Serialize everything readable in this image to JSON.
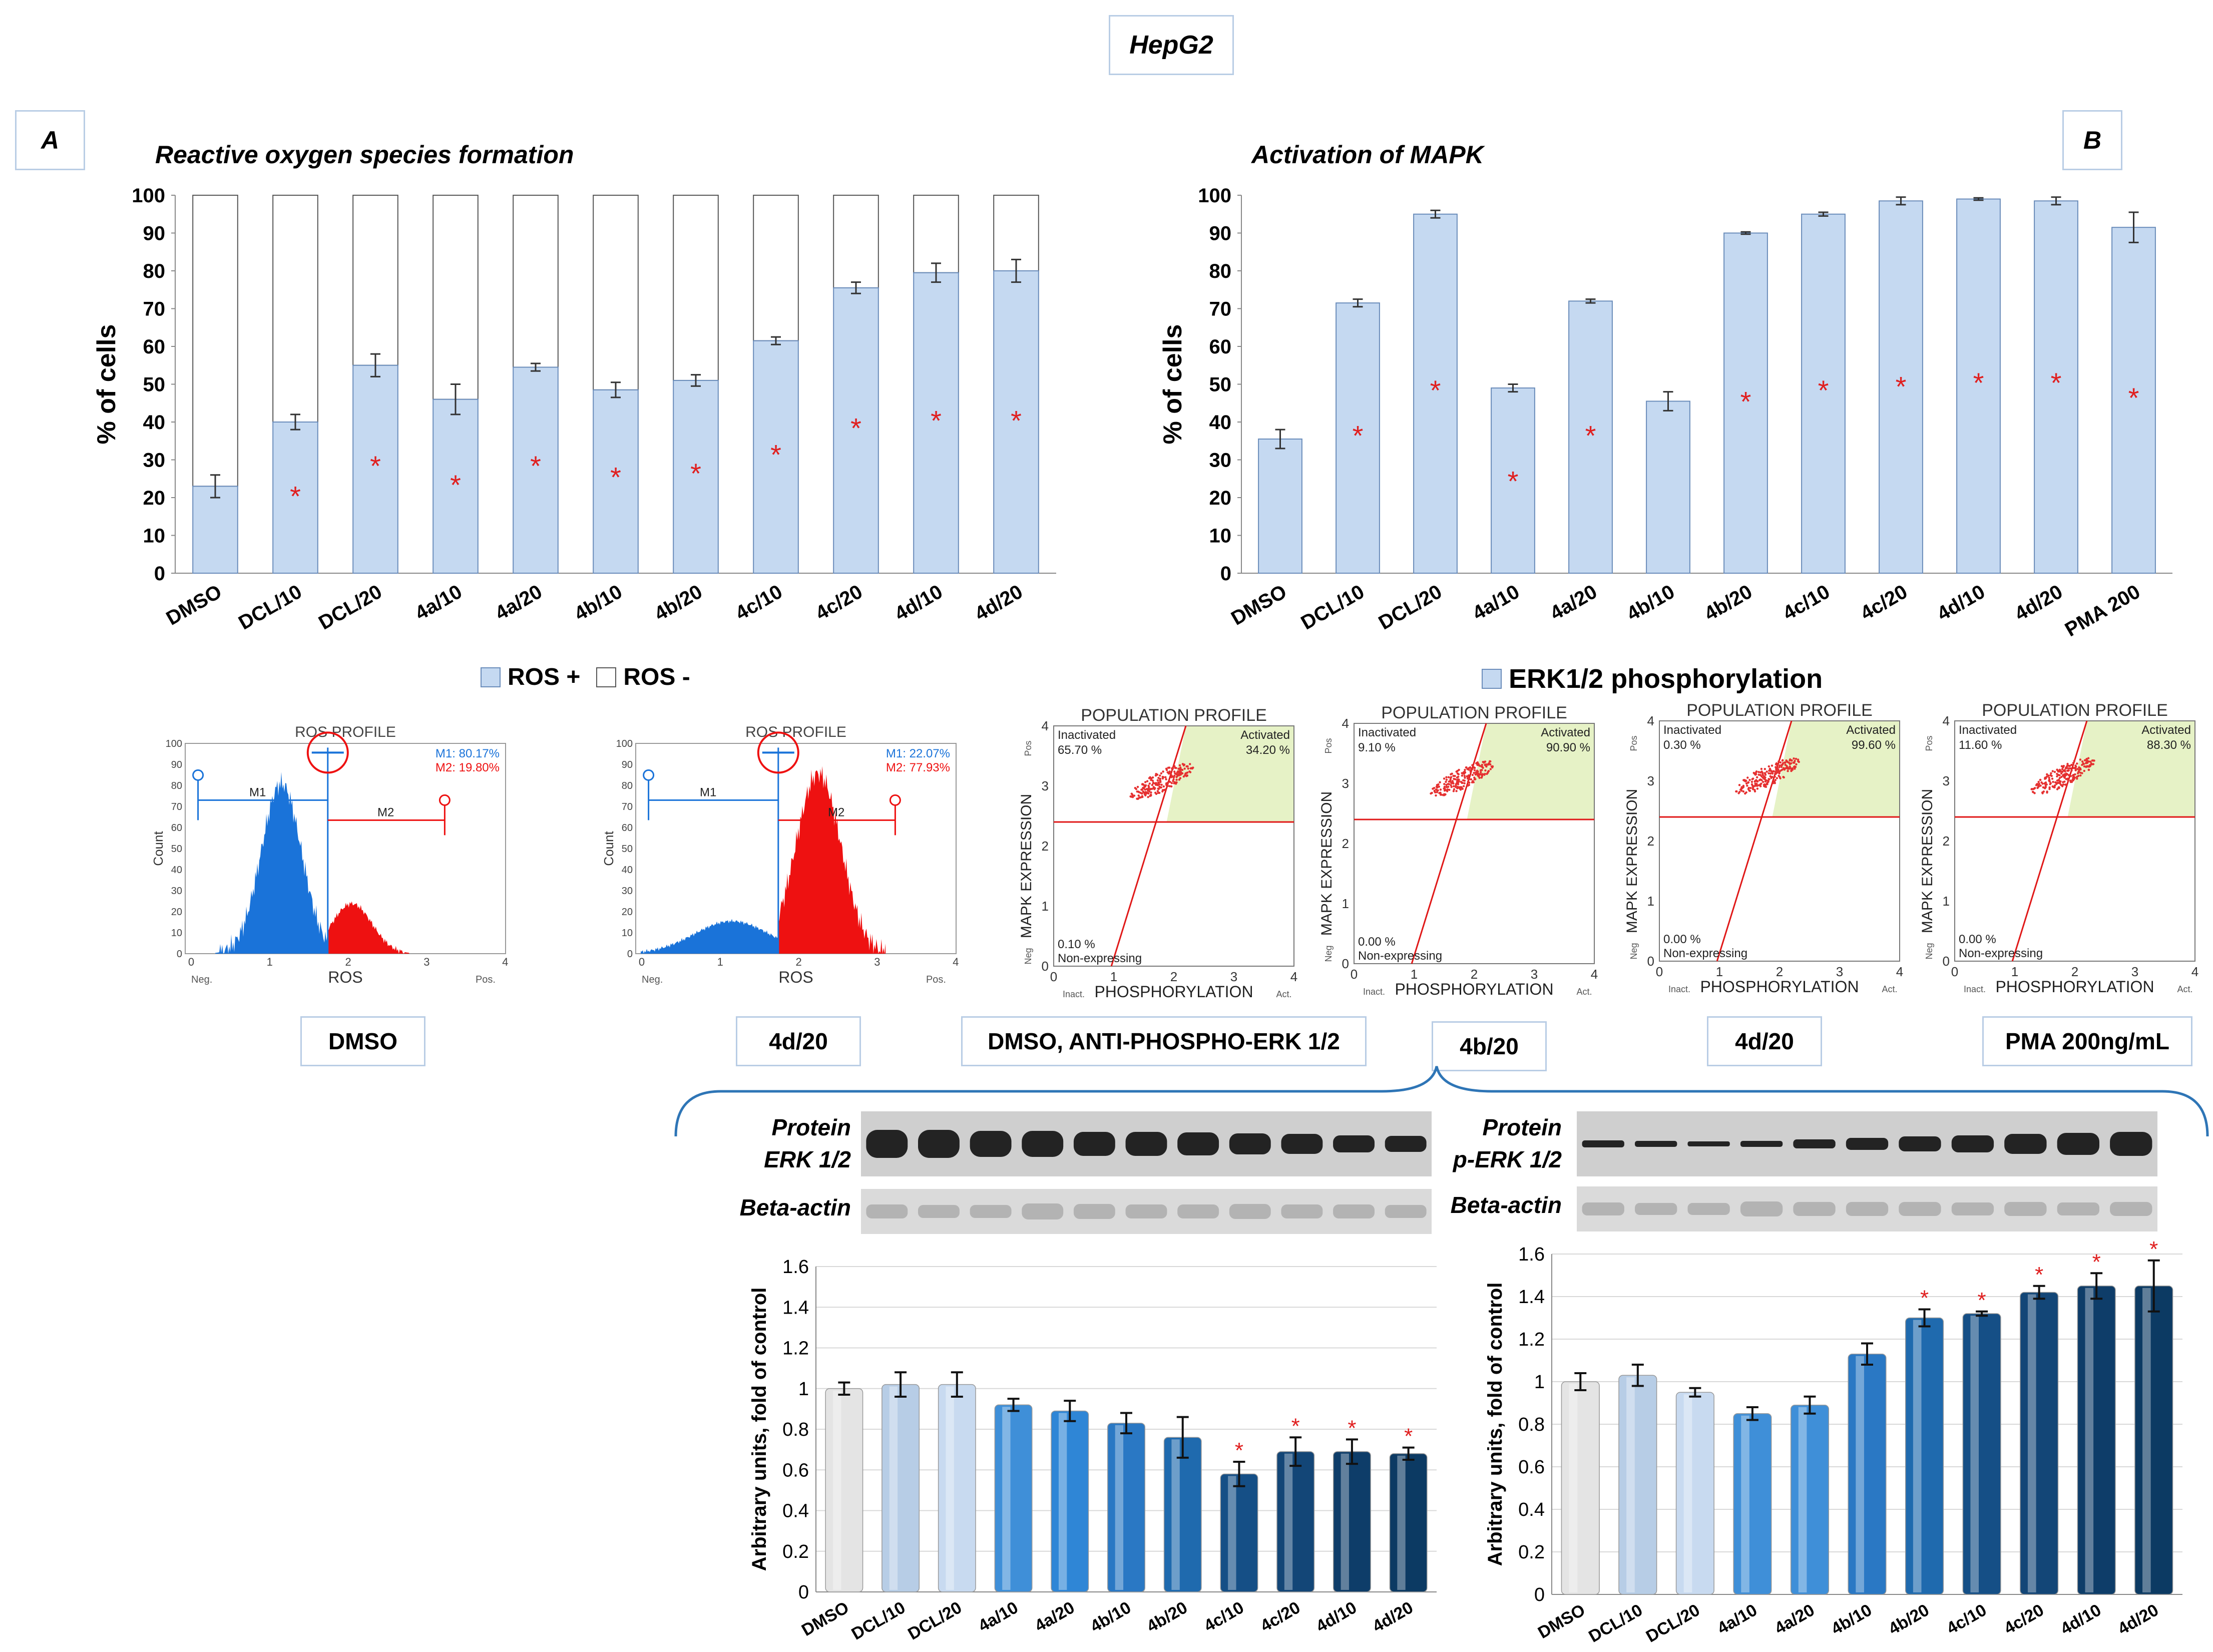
{
  "title": "HepG2",
  "panel_labels": [
    "A",
    "B"
  ],
  "legend_a": {
    "pos": "ROS +",
    "neg": "ROS -"
  },
  "legend_b": "ERK1/2 phosphorylation",
  "colors": {
    "bar_fill": "#c5d9f1",
    "bar_stroke": "#6a8cba",
    "star": "#e02020",
    "hist_blue": "#1a73d9",
    "hist_red": "#ee1111",
    "gate_green": "#e6f2c6",
    "label_border": "#b9cde5"
  },
  "chart_data": [
    {
      "id": "ros",
      "type": "bar",
      "title": "Reactive oxygen species formation",
      "ylabel": "% of cells",
      "ylim": [
        0,
        100
      ],
      "yticks": [
        0,
        10,
        20,
        30,
        40,
        50,
        60,
        70,
        80,
        90,
        100
      ],
      "categories": [
        "DMSO",
        "DCL/10",
        "DCL/20",
        "4a/10",
        "4a/20",
        "4b/10",
        "4b/20",
        "4c/10",
        "4c/20",
        "4d/10",
        "4d/20"
      ],
      "series": [
        {
          "name": "ROS +",
          "values": [
            23,
            40,
            55,
            46,
            54.5,
            48.5,
            51,
            61.5,
            75.5,
            79.5,
            80
          ]
        },
        {
          "name": "ROS -",
          "values": [
            77,
            60,
            45,
            54,
            45.5,
            51.5,
            49,
            38.5,
            24.5,
            20.5,
            20
          ]
        }
      ],
      "errors": [
        3,
        2,
        3,
        4,
        1,
        2,
        1.5,
        1,
        1.5,
        2.5,
        3
      ],
      "significant": [
        false,
        true,
        true,
        true,
        true,
        true,
        true,
        true,
        true,
        true,
        true
      ],
      "star_values": [
        0,
        21,
        29,
        24,
        29,
        26,
        27,
        32,
        39,
        41,
        41
      ],
      "star": "*"
    },
    {
      "id": "mapk",
      "type": "bar",
      "title": "Activation of MAPK",
      "ylabel": "% of cells",
      "ylim": [
        0,
        100
      ],
      "yticks": [
        0,
        10,
        20,
        30,
        40,
        50,
        60,
        70,
        80,
        90,
        100
      ],
      "categories": [
        "DMSO",
        "DCL/10",
        "DCL/20",
        "4a/10",
        "4a/20",
        "4b/10",
        "4b/20",
        "4c/10",
        "4c/20",
        "4d/10",
        "4d/20",
        "PMA 200"
      ],
      "series": [
        {
          "name": "ERK1/2 phosphorylation",
          "values": [
            35.5,
            71.5,
            95,
            49,
            72,
            45.5,
            90,
            95,
            98.5,
            99,
            98.5,
            91.5
          ]
        }
      ],
      "errors": [
        2.5,
        1,
        1,
        1,
        0.5,
        2.5,
        0.3,
        0.5,
        1,
        0.3,
        1,
        4
      ],
      "significant": [
        false,
        true,
        true,
        true,
        true,
        false,
        true,
        true,
        true,
        true,
        true,
        true
      ],
      "star_values": [
        0,
        37,
        49,
        25,
        37,
        0,
        46,
        49,
        50,
        51,
        51,
        47
      ],
      "star": "*"
    },
    {
      "id": "erk",
      "type": "bar",
      "title": "",
      "ylabel": "Arbitrary units, fold of control",
      "ylim": [
        0,
        1.6
      ],
      "yticks": [
        0,
        0.2,
        0.4,
        0.6,
        0.8,
        1,
        1.2,
        1.4,
        1.6
      ],
      "categories": [
        "DMSO",
        "DCL/10",
        "DCL/20",
        "4a/10",
        "4a/20",
        "4b/10",
        "4b/20",
        "4c/10",
        "4c/20",
        "4d/10",
        "4d/20"
      ],
      "values": [
        1.0,
        1.02,
        1.02,
        0.92,
        0.89,
        0.83,
        0.76,
        0.58,
        0.69,
        0.69,
        0.68
      ],
      "errors": [
        0.03,
        0.06,
        0.06,
        0.03,
        0.05,
        0.05,
        0.1,
        0.06,
        0.07,
        0.06,
        0.03
      ],
      "significant": [
        false,
        false,
        false,
        false,
        false,
        false,
        false,
        true,
        true,
        true,
        true
      ],
      "star": "*"
    },
    {
      "id": "perk",
      "type": "bar",
      "title": "",
      "ylabel": "Arbitrary units, fold of control",
      "ylim": [
        0,
        1.6
      ],
      "yticks": [
        0,
        0.2,
        0.4,
        0.6,
        0.8,
        1,
        1.2,
        1.4,
        1.6
      ],
      "categories": [
        "DMSO",
        "DCL/10",
        "DCL/20",
        "4a/10",
        "4a/20",
        "4b/10",
        "4b/20",
        "4c/10",
        "4c/20",
        "4d/10",
        "4d/20"
      ],
      "values": [
        1.0,
        1.03,
        0.95,
        0.85,
        0.89,
        1.13,
        1.3,
        1.32,
        1.42,
        1.45,
        1.45
      ],
      "errors": [
        0.04,
        0.05,
        0.02,
        0.03,
        0.04,
        0.05,
        0.04,
        0.01,
        0.03,
        0.06,
        0.12
      ],
      "significant": [
        false,
        false,
        false,
        false,
        false,
        false,
        true,
        true,
        true,
        true,
        true
      ],
      "star": "*"
    }
  ],
  "ros_profiles": [
    {
      "title": "ROS PROFILE",
      "m1": "M1: 80.17%",
      "m2": "M2: 19.80%",
      "gate1": "M1",
      "gate2": "M2",
      "xlabel": "ROS",
      "ylabel": "Count",
      "neg": "Neg.",
      "pos": "Pos.",
      "yticks": [
        "0",
        "10",
        "20",
        "30",
        "40",
        "50",
        "60",
        "70",
        "80",
        "90",
        "100"
      ],
      "xticks": [
        "0",
        "1",
        "2",
        "3",
        "4"
      ],
      "caption": "DMSO"
    },
    {
      "title": "ROS PROFILE",
      "m1": "M1: 22.07%",
      "m2": "M2: 77.93%",
      "gate1": "M1",
      "gate2": "M2",
      "xlabel": "ROS",
      "ylabel": "Count",
      "neg": "Neg.",
      "pos": "Pos.",
      "yticks": [
        "0",
        "10",
        "20",
        "30",
        "40",
        "50",
        "60",
        "70",
        "80",
        "90",
        "100"
      ],
      "xticks": [
        "0",
        "1",
        "2",
        "3",
        "4"
      ],
      "caption": "4d/20"
    }
  ],
  "population_profiles": [
    {
      "title": "POPULATION PROFILE",
      "inactivated": "Inactivated",
      "inactivated_pct": "65.70 %",
      "activated": "Activated",
      "activated_pct": "34.20 %",
      "nonexp_pct": "0.10 %",
      "nonexp": "Non-expressing",
      "xlabel": "PHOSPHORYLATION",
      "inact": "Inact.",
      "act": "Act.",
      "ylabel": "MAPK EXPRESSION",
      "pos": "Pos",
      "neg": "Neg",
      "ticks": [
        "0",
        "1",
        "2",
        "3",
        "4"
      ],
      "caption": "DMSO, ANTI-PHOSPHO-ERK 1/2"
    },
    {
      "title": "POPULATION PROFILE",
      "inactivated": "Inactivated",
      "inactivated_pct": "9.10 %",
      "activated": "Activated",
      "activated_pct": "90.90 %",
      "nonexp_pct": "0.00 %",
      "nonexp": "Non-expressing",
      "xlabel": "PHOSPHORYLATION",
      "inact": "Inact.",
      "act": "Act.",
      "ylabel": "MAPK EXPRESSION",
      "pos": "Pos",
      "neg": "Neg",
      "ticks": [
        "0",
        "1",
        "2",
        "3",
        "4"
      ],
      "caption": "4b/20"
    },
    {
      "title": "POPULATION PROFILE",
      "inactivated": "Inactivated",
      "inactivated_pct": "0.30 %",
      "activated": "Activated",
      "activated_pct": "99.60 %",
      "nonexp_pct": "0.00 %",
      "nonexp": "Non-expressing",
      "xlabel": "PHOSPHORYLATION",
      "inact": "Inact.",
      "act": "Act.",
      "ylabel": "MAPK EXPRESSION",
      "pos": "Pos",
      "neg": "Neg",
      "ticks": [
        "0",
        "1",
        "2",
        "3",
        "4"
      ],
      "caption": "4d/20"
    },
    {
      "title": "POPULATION PROFILE",
      "inactivated": "Inactivated",
      "inactivated_pct": "11.60 %",
      "activated": "Activated",
      "activated_pct": "88.30 %",
      "nonexp_pct": "0.00 %",
      "nonexp": "Non-expressing",
      "xlabel": "PHOSPHORYLATION",
      "inact": "Inact.",
      "act": "Act.",
      "ylabel": "MAPK EXPRESSION",
      "pos": "Pos",
      "neg": "Neg",
      "ticks": [
        "0",
        "1",
        "2",
        "3",
        "4"
      ],
      "caption": "PMA 200ng/mL"
    }
  ],
  "blots": {
    "erk_label_1": "Protein",
    "erk_label_2": "ERK 1/2",
    "perk_label_1": "Protein",
    "perk_label_2": "p-ERK 1/2",
    "actin_label": "Beta-actin"
  }
}
